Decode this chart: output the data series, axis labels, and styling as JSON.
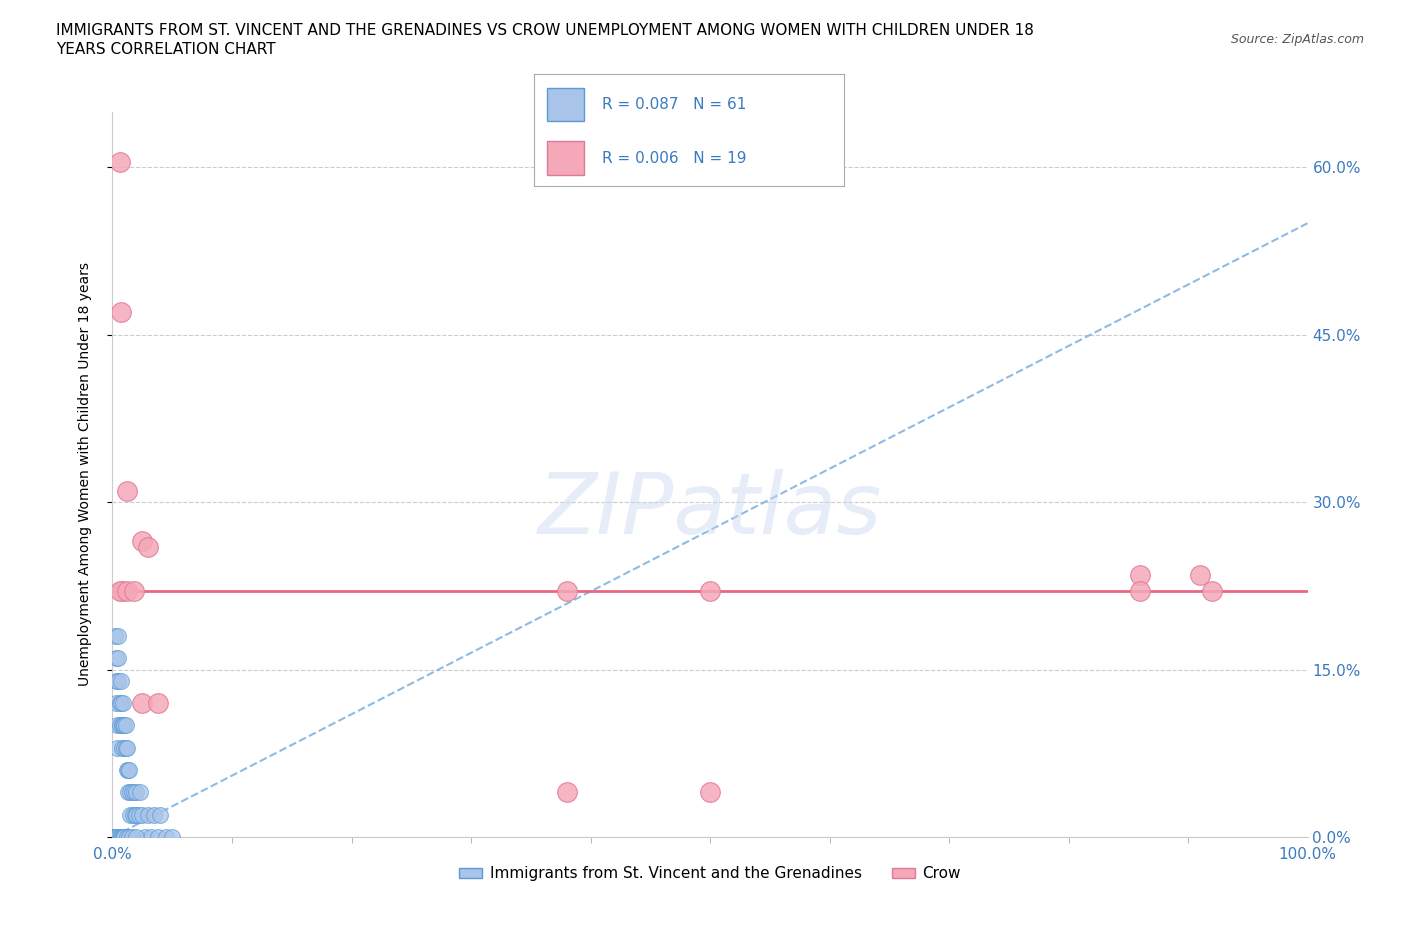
{
  "title_line1": "IMMIGRANTS FROM ST. VINCENT AND THE GRENADINES VS CROW UNEMPLOYMENT AMONG WOMEN WITH CHILDREN UNDER 18",
  "title_line2": "YEARS CORRELATION CHART",
  "source": "Source: ZipAtlas.com",
  "ylabel": "Unemployment Among Women with Children Under 18 years",
  "xlim": [
    0.0,
    1.0
  ],
  "ylim": [
    0.0,
    0.65
  ],
  "xtick_positions": [
    0.0,
    1.0
  ],
  "xtick_labels": [
    "0.0%",
    "100.0%"
  ],
  "ytick_values": [
    0.0,
    0.15,
    0.3,
    0.45,
    0.6
  ],
  "ytick_labels": [
    "0.0%",
    "15.0%",
    "30.0%",
    "45.0%",
    "60.0%"
  ],
  "legend1_label": "Immigrants from St. Vincent and the Grenadines",
  "legend2_label": "Crow",
  "R1": 0.087,
  "N1": 61,
  "R2": 0.006,
  "N2": 19,
  "color1": "#a8c4e8",
  "color2": "#f4a8b8",
  "color1_edge": "#5b9bd5",
  "color2_edge": "#e07898",
  "trendline1_color": "#7ab0e0",
  "trendline2_color": "#e8607a",
  "watermark": "ZIPatlas",
  "title_fontsize": 11,
  "axis_label_fontsize": 10,
  "tick_fontsize": 11,
  "blue_x": [
    0.002,
    0.003,
    0.003,
    0.003,
    0.004,
    0.004,
    0.005,
    0.005,
    0.005,
    0.006,
    0.006,
    0.007,
    0.007,
    0.008,
    0.008,
    0.009,
    0.009,
    0.01,
    0.01,
    0.011,
    0.011,
    0.012,
    0.012,
    0.013,
    0.013,
    0.014,
    0.015,
    0.015,
    0.016,
    0.017,
    0.018,
    0.019,
    0.02,
    0.02,
    0.022,
    0.023,
    0.025,
    0.027,
    0.03,
    0.032,
    0.035,
    0.038,
    0.04,
    0.045,
    0.05,
    0.001,
    0.001,
    0.002,
    0.002,
    0.003,
    0.004,
    0.005,
    0.006,
    0.007,
    0.008,
    0.009,
    0.01,
    0.012,
    0.014,
    0.016,
    0.02
  ],
  "blue_y": [
    0.18,
    0.16,
    0.14,
    0.12,
    0.1,
    0.08,
    0.18,
    0.16,
    0.14,
    0.12,
    0.1,
    0.14,
    0.12,
    0.1,
    0.08,
    0.12,
    0.1,
    0.1,
    0.08,
    0.1,
    0.08,
    0.08,
    0.06,
    0.06,
    0.04,
    0.06,
    0.04,
    0.02,
    0.04,
    0.02,
    0.04,
    0.02,
    0.04,
    0.02,
    0.02,
    0.04,
    0.02,
    0.0,
    0.02,
    0.0,
    0.02,
    0.0,
    0.02,
    0.0,
    0.0,
    0.0,
    0.0,
    0.0,
    0.0,
    0.0,
    0.0,
    0.0,
    0.0,
    0.0,
    0.0,
    0.0,
    0.0,
    0.0,
    0.0,
    0.0,
    0.0
  ],
  "pink_x": [
    0.006,
    0.007,
    0.008,
    0.012,
    0.025,
    0.03,
    0.38,
    0.86,
    0.91,
    0.006,
    0.012,
    0.018,
    0.025,
    0.038,
    0.5,
    0.86,
    0.92,
    0.38,
    0.5
  ],
  "pink_y": [
    0.605,
    0.47,
    0.22,
    0.31,
    0.265,
    0.26,
    0.04,
    0.235,
    0.235,
    0.22,
    0.22,
    0.22,
    0.12,
    0.12,
    0.22,
    0.22,
    0.22,
    0.22,
    0.04
  ],
  "trendline1_x": [
    0.0,
    1.0
  ],
  "trendline1_y": [
    0.0,
    0.55
  ],
  "trendline2_y": 0.22
}
